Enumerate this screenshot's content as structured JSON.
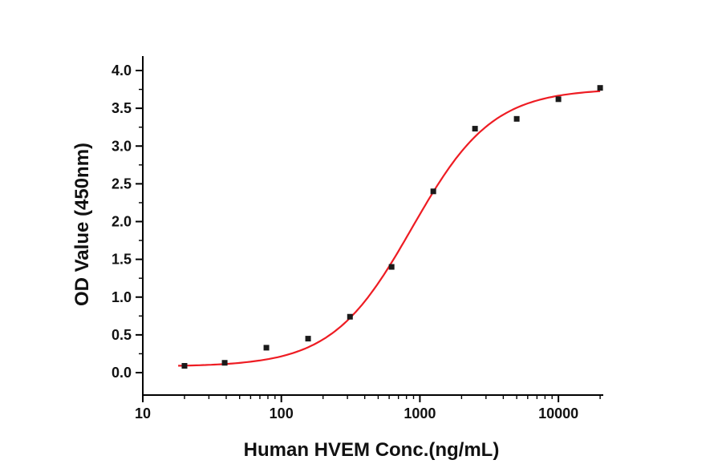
{
  "figure": {
    "background": "#ffffff"
  },
  "chart_data": {
    "type": "scatter",
    "title": "",
    "xlabel": "Human HVEM Conc.(ng/mL)",
    "ylabel": "OD Value (450nm)",
    "x_scale": "log10",
    "x": [
      20,
      39,
      78,
      156,
      313,
      625,
      1250,
      2500,
      5000,
      10000,
      20000
    ],
    "y": [
      0.09,
      0.13,
      0.33,
      0.45,
      0.74,
      1.4,
      2.4,
      3.23,
      3.36,
      3.62,
      3.77
    ],
    "x_ticks": [
      10,
      100,
      1000,
      10000
    ],
    "x_minor_multipliers": [
      2,
      3,
      4,
      5,
      6,
      7,
      8,
      9
    ],
    "x_range": [
      10,
      20000
    ],
    "y_ticks": [
      0,
      0.5,
      1,
      1.5,
      2,
      2.5,
      3,
      3.5,
      4
    ],
    "y_tick_decimals": 1,
    "y_minor_step": 0.25,
    "y_range": [
      -0.3,
      4.2
    ],
    "grid": false,
    "legend": "none",
    "axis_color": "#000000",
    "marker": {
      "shape": "square",
      "color": "#1a1a1a",
      "size": 7
    },
    "fit_curve": {
      "model": "4PL",
      "bottom": 0.08,
      "top": 3.76,
      "ec50": 880,
      "hill": 1.5,
      "color": "#ee1c23",
      "width": 2.2
    }
  }
}
